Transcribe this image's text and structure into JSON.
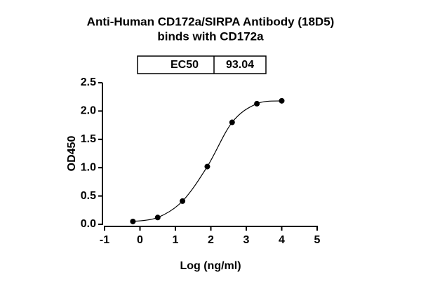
{
  "chart_data": {
    "type": "scatter",
    "title": [
      "Anti-Human CD172a/SIRPA Antibody (18D5)",
      "binds with CD172a"
    ],
    "ec50_table": {
      "label": "EC50",
      "value": 93.04
    },
    "x_label": "Log (ng/ml)",
    "y_label": "OD450",
    "x": [
      -0.2,
      0.5,
      1.2,
      1.9,
      2.6,
      3.3,
      4.0
    ],
    "values": [
      0.05,
      0.12,
      0.41,
      1.02,
      1.8,
      2.13,
      2.18
    ],
    "color": "#000000",
    "fit_curve": true,
    "xlim": [
      -1,
      5
    ],
    "xticks": [
      -1,
      0,
      1,
      2,
      3,
      4,
      5
    ],
    "ylim": [
      0,
      2.5
    ],
    "yticks": [
      {
        "value": 0,
        "label": "0.0"
      },
      0.5,
      {
        "value": 1,
        "label": "1.0"
      },
      1.5,
      {
        "value": 2,
        "label": "2.0"
      },
      2.5
    ]
  }
}
